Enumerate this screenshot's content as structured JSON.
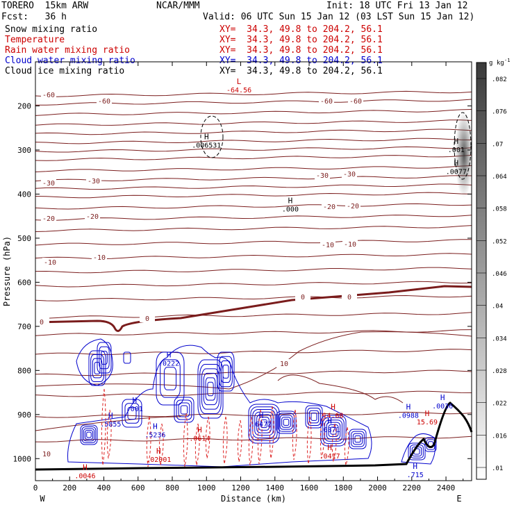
{
  "header": {
    "model": "TORERO  15km ARW",
    "center": "NCAR/MMM",
    "init": "Init: 18 UTC Fri 13 Jan 12",
    "fcst": "Fcst:   36 h",
    "valid": "Valid: 06 UTC Sun 15 Jan 12 (03 LST Sun 15 Jan 12)"
  },
  "fields": [
    {
      "name": "Snow mixing ratio",
      "xy": "XY=  34.3, 49.8 to 204.2, 56.1",
      "color": "#000000",
      "xy_color": "#cc0000"
    },
    {
      "name": "Temperature",
      "xy": "XY=  34.3, 49.8 to 204.2, 56.1",
      "color": "#cc0000",
      "xy_color": "#cc0000"
    },
    {
      "name": "Rain water mixing ratio",
      "xy": "XY=  34.3, 49.8 to 204.2, 56.1",
      "color": "#cc0000",
      "xy_color": "#cc0000"
    },
    {
      "name": "Cloud water mixing ratio",
      "xy": "XY=  34.3, 49.8 to 204.2, 56.1",
      "color": "#0000cc",
      "xy_color": "#0000cc"
    },
    {
      "name": "Cloud ice mixing ratio",
      "xy": "XY=  34.3, 49.8 to 204.2, 56.1",
      "color": "#000000",
      "xy_color": "#000000"
    }
  ],
  "colorbar": {
    "unit": "g kg",
    "unit_exp": "-1",
    "ticks": [
      ".01",
      ".016",
      ".022",
      ".028",
      ".034",
      ".04",
      ".046",
      ".052",
      ".058",
      ".064",
      ".07",
      ".076",
      ".082"
    ]
  },
  "chart_data": {
    "type": "cross-section contour",
    "xlabel": "Distance (km)",
    "ylabel": "Pressure (hPa)",
    "xlim": [
      0,
      2550
    ],
    "ylim": [
      1050,
      100
    ],
    "x_ticks": [
      0,
      200,
      400,
      600,
      800,
      1000,
      1200,
      1400,
      1600,
      1800,
      2000,
      2200,
      2400
    ],
    "y_ticks": [
      200,
      300,
      400,
      500,
      600,
      700,
      800,
      900,
      1000
    ],
    "x_end_labels": {
      "left": "W",
      "right": "E"
    },
    "temperature_isotherms": [
      {
        "value": -60,
        "label": "-60"
      },
      {
        "value": -30,
        "label": "-30"
      },
      {
        "value": -20,
        "label": "-20"
      },
      {
        "value": -10,
        "label": "-10"
      },
      {
        "value": 0,
        "label": "0"
      },
      {
        "value": 10,
        "label": "10"
      }
    ],
    "extrema": [
      {
        "kind": "L",
        "value": "-64.56",
        "x": 1190,
        "p": 160,
        "color": "#cc0000"
      },
      {
        "kind": "H",
        "value": ".006531",
        "x": 1000,
        "p": 285,
        "color": "#000000"
      },
      {
        "kind": "H",
        "value": ".000",
        "x": 1490,
        "p": 430,
        "color": "#000000"
      },
      {
        "kind": "H",
        "value": ".001",
        "x": 2460,
        "p": 295,
        "color": "#000000"
      },
      {
        "kind": "H",
        "value": ".0077",
        "x": 2460,
        "p": 345,
        "color": "#000000"
      },
      {
        "kind": "H",
        "value": ".0222",
        "x": 780,
        "p": 780,
        "color": "#0000cc"
      },
      {
        "kind": "H",
        "value": ".001",
        "x": 580,
        "p": 883,
        "color": "#0000cc"
      },
      {
        "kind": "H",
        "value": ".5855",
        "x": 440,
        "p": 918,
        "color": "#0000cc"
      },
      {
        "kind": "H",
        "value": ".5236",
        "x": 700,
        "p": 942,
        "color": "#0000cc"
      },
      {
        "kind": "H",
        "value": ".6472",
        "x": 1320,
        "p": 918,
        "color": "#0000cc"
      },
      {
        "kind": "H",
        "value": ".6871",
        "x": 1720,
        "p": 930,
        "color": "#0000cc"
      },
      {
        "kind": "H",
        "value": ".0988",
        "x": 2180,
        "p": 898,
        "color": "#0000cc"
      },
      {
        "kind": "H",
        "value": ".0036",
        "x": 2380,
        "p": 877,
        "color": "#0000cc"
      },
      {
        "kind": "H",
        "value": "14.68",
        "x": 1740,
        "p": 898,
        "color": "#cc0000"
      },
      {
        "kind": "H",
        "value": "15.69",
        "x": 2290,
        "p": 913,
        "color": "#cc0000"
      },
      {
        "kind": "H",
        "value": ".0046",
        "x": 290,
        "p": 1035,
        "color": "#cc0000"
      },
      {
        "kind": "H",
        "value": ".02001",
        "x": 720,
        "p": 998,
        "color": "#cc0000"
      },
      {
        "kind": "H",
        "value": ".0614",
        "x": 960,
        "p": 950,
        "color": "#cc0000"
      },
      {
        "kind": "H",
        "value": ".0417",
        "x": 1720,
        "p": 990,
        "color": "#cc0000"
      },
      {
        "kind": "H",
        "value": ".715",
        "x": 2220,
        "p": 1033,
        "color": "#0000cc"
      }
    ]
  }
}
